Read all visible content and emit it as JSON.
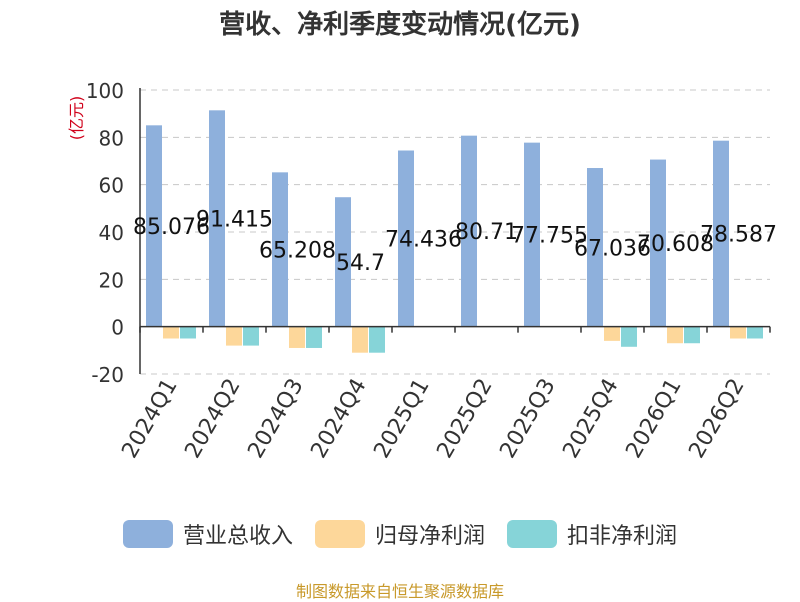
{
  "title": "营收、净利季度变动情况(亿元)",
  "unit_label": "(亿元)",
  "source_note": "制图数据来自恒生聚源数据库",
  "colors": {
    "revenue": "#8eb0dc",
    "net_profit": "#fdd79a",
    "deducted_profit": "#86d4d8",
    "axis": "#333333",
    "grid": "#c8c8c8",
    "unit_label": "#d0021b"
  },
  "chart_data": {
    "type": "bar",
    "title": "营收、净利季度变动情况(亿元)",
    "xlabel": "",
    "ylabel": "(亿元)",
    "ylim": [
      -20,
      100
    ],
    "yticks": [
      100,
      80,
      60,
      40,
      20,
      0,
      -20
    ],
    "grid": true,
    "legend_position": "bottom",
    "categories": [
      "2024Q1",
      "2024Q2",
      "2024Q3",
      "2024Q4",
      "2025Q1",
      "2025Q2",
      "2025Q3",
      "2025Q4",
      "2026Q1",
      "2026Q2"
    ],
    "series": [
      {
        "name": "营业总收入",
        "color": "#8eb0dc",
        "values": [
          85.076,
          91.415,
          65.208,
          54.7,
          74.436,
          80.71,
          77.755,
          67.036,
          70.608,
          78.587
        ],
        "labels": [
          "85.076",
          "91.415",
          "65.208",
          "54.7",
          "74.436",
          "80.71",
          "77.755",
          "67.036",
          "70.608",
          "78.587"
        ]
      },
      {
        "name": "归母净利润",
        "color": "#fdd79a",
        "values": [
          -5,
          -8,
          -9,
          -11,
          0,
          0,
          0,
          -6,
          -7,
          -5
        ]
      },
      {
        "name": "扣非净利润",
        "color": "#86d4d8",
        "values": [
          -5,
          -8,
          -9,
          -11,
          0,
          0,
          0,
          -8.5,
          -7,
          -5
        ]
      }
    ]
  }
}
